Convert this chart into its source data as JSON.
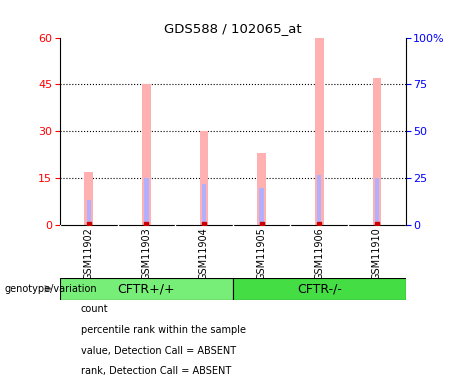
{
  "title": "GDS588 / 102065_at",
  "samples": [
    "GSM11902",
    "GSM11903",
    "GSM11904",
    "GSM11905",
    "GSM11906",
    "GSM11910"
  ],
  "groups": [
    "CFTR+/+",
    "CFTR+/+",
    "CFTR+/+",
    "CFTR-/-",
    "CFTR-/-",
    "CFTR-/-"
  ],
  "group_labels": [
    "CFTR+/+",
    "CFTR-/-"
  ],
  "cftr_plus_color": "#77ee77",
  "cftr_minus_color": "#44dd44",
  "value_bars": [
    17,
    45,
    30,
    23,
    60,
    47
  ],
  "rank_bars": [
    8,
    15,
    13,
    12,
    16,
    15
  ],
  "value_color": "#ffb0b0",
  "rank_color": "#b0b0ff",
  "count_color": "#cc0000",
  "percentile_color": "#0000cc",
  "left_ylim": [
    0,
    60
  ],
  "right_ylim": [
    0,
    100
  ],
  "left_yticks": [
    0,
    15,
    30,
    45,
    60
  ],
  "right_yticks": [
    0,
    25,
    50,
    75,
    100
  ],
  "right_yticklabels": [
    "0",
    "25",
    "50",
    "75",
    "100%"
  ],
  "bar_width": 0.15,
  "background_color": "#ffffff",
  "label_area_color": "#cccccc",
  "genotype_label": "genotype/variation",
  "legend_items": [
    {
      "color": "#cc0000",
      "label": "count"
    },
    {
      "color": "#0000cc",
      "label": "percentile rank within the sample"
    },
    {
      "color": "#ffb0b0",
      "label": "value, Detection Call = ABSENT"
    },
    {
      "color": "#b0b0ff",
      "label": "rank, Detection Call = ABSENT"
    }
  ]
}
